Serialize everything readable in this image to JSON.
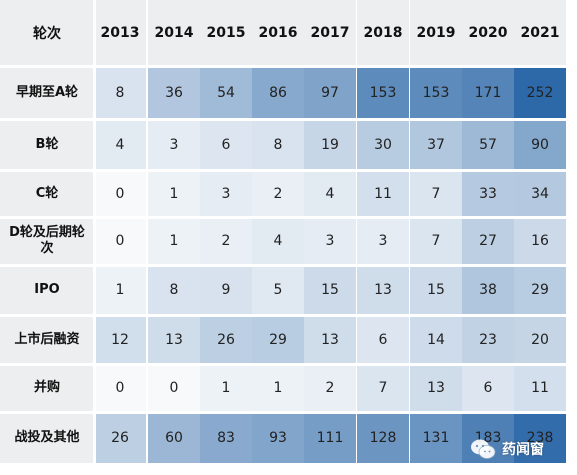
{
  "chart_data": {
    "type": "heatmap",
    "header_label": "轮次",
    "columns": [
      "2013",
      "2014",
      "2015",
      "2016",
      "2017",
      "2018",
      "2019",
      "2020",
      "2021"
    ],
    "rows": [
      {
        "label": "早期至A轮",
        "values": [
          8,
          36,
          54,
          86,
          97,
          153,
          153,
          171,
          252
        ]
      },
      {
        "label": "B轮",
        "values": [
          4,
          3,
          6,
          8,
          19,
          30,
          37,
          57,
          90
        ]
      },
      {
        "label": "C轮",
        "values": [
          0,
          1,
          3,
          2,
          4,
          11,
          7,
          33,
          34
        ]
      },
      {
        "label": "D轮及后期轮次",
        "values": [
          0,
          1,
          2,
          4,
          3,
          3,
          7,
          27,
          16
        ]
      },
      {
        "label": "IPO",
        "values": [
          1,
          8,
          9,
          5,
          15,
          13,
          15,
          38,
          29
        ]
      },
      {
        "label": "上市后融资",
        "values": [
          12,
          13,
          26,
          29,
          13,
          6,
          14,
          23,
          20
        ]
      },
      {
        "label": "并购",
        "values": [
          0,
          0,
          1,
          1,
          2,
          7,
          13,
          6,
          11
        ]
      },
      {
        "label": "战投及其他",
        "values": [
          26,
          60,
          83,
          93,
          111,
          128,
          131,
          183,
          238
        ]
      }
    ],
    "color_scale": {
      "low": "#f7f9fb",
      "high": "#2d68a8"
    }
  },
  "watermark": {
    "text": "药闻窗",
    "icon": "wechat-icon"
  }
}
